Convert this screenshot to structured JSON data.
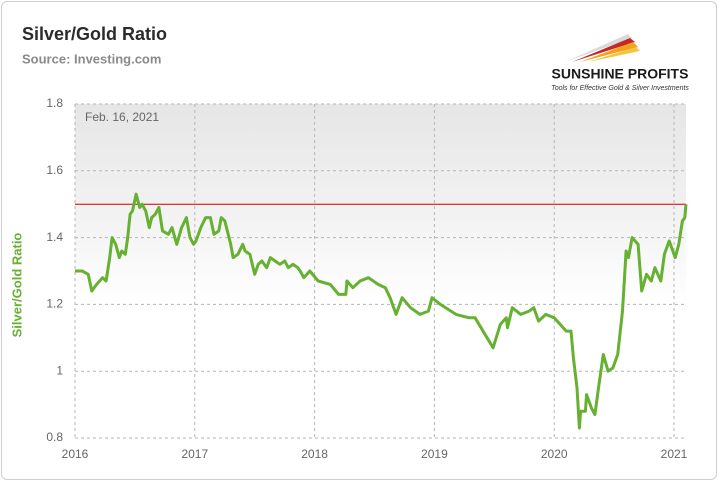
{
  "chart_data": {
    "type": "line",
    "title": "Silver/Gold Ratio",
    "subtitle": "Source: Investing.com",
    "y_label": "Silver/Gold Ratio",
    "annotation": "Feb. 16, 2021",
    "color": "#66b032",
    "grid": true,
    "xlim": [
      2016,
      2021.1
    ],
    "xticks": [
      2016,
      2017,
      2018,
      2019,
      2020,
      2021
    ],
    "ylim": [
      0.8,
      1.8
    ],
    "yticks": [
      0.8,
      1,
      1.2,
      1.4,
      1.6,
      1.8
    ],
    "reference_line": {
      "value": 1.5,
      "color": "#cc0000"
    },
    "x": [
      2016.0,
      2016.06,
      2016.11,
      2016.14,
      2016.18,
      2016.23,
      2016.26,
      2016.29,
      2016.31,
      2016.34,
      2016.37,
      2016.39,
      2016.42,
      2016.44,
      2016.46,
      2016.48,
      2016.51,
      2016.54,
      2016.56,
      2016.59,
      2016.62,
      2016.64,
      2016.67,
      2016.7,
      2016.73,
      2016.78,
      2016.81,
      2016.85,
      2016.89,
      2016.93,
      2016.96,
      2016.99,
      2017.01,
      2017.05,
      2017.09,
      2017.13,
      2017.16,
      2017.2,
      2017.22,
      2017.25,
      2017.3,
      2017.32,
      2017.36,
      2017.4,
      2017.42,
      2017.46,
      2017.5,
      2017.53,
      2017.56,
      2017.6,
      2017.63,
      2017.67,
      2017.71,
      2017.75,
      2017.78,
      2017.82,
      2017.86,
      2017.88,
      2017.91,
      2017.96,
      2018.03,
      2018.13,
      2018.2,
      2018.26,
      2018.27,
      2018.32,
      2018.38,
      2018.45,
      2018.53,
      2018.59,
      2018.63,
      2018.68,
      2018.73,
      2018.8,
      2018.88,
      2018.95,
      2018.98,
      2019.05,
      2019.18,
      2019.29,
      2019.34,
      2019.39,
      2019.44,
      2019.49,
      2019.55,
      2019.6,
      2019.61,
      2019.65,
      2019.72,
      2019.79,
      2019.83,
      2019.87,
      2019.93,
      2020.0,
      2020.1,
      2020.14,
      2020.16,
      2020.19,
      2020.21,
      2020.22,
      2020.26,
      2020.27,
      2020.31,
      2020.34,
      2020.37,
      2020.41,
      2020.45,
      2020.49,
      2020.53,
      2020.57,
      2020.6,
      2020.62,
      2020.65,
      2020.7,
      2020.73,
      2020.77,
      2020.81,
      2020.84,
      2020.89,
      2020.92,
      2020.96,
      2021.01,
      2021.04,
      2021.07,
      2021.09,
      2021.1
    ],
    "values": [
      1.3,
      1.3,
      1.29,
      1.24,
      1.26,
      1.28,
      1.27,
      1.34,
      1.4,
      1.38,
      1.34,
      1.36,
      1.35,
      1.4,
      1.47,
      1.48,
      1.53,
      1.49,
      1.5,
      1.48,
      1.43,
      1.46,
      1.47,
      1.49,
      1.42,
      1.41,
      1.43,
      1.38,
      1.43,
      1.46,
      1.4,
      1.38,
      1.39,
      1.43,
      1.46,
      1.46,
      1.41,
      1.42,
      1.46,
      1.45,
      1.38,
      1.34,
      1.35,
      1.38,
      1.36,
      1.35,
      1.29,
      1.32,
      1.33,
      1.31,
      1.34,
      1.33,
      1.32,
      1.33,
      1.31,
      1.32,
      1.31,
      1.3,
      1.28,
      1.3,
      1.27,
      1.26,
      1.23,
      1.23,
      1.27,
      1.25,
      1.27,
      1.28,
      1.26,
      1.25,
      1.22,
      1.17,
      1.22,
      1.19,
      1.17,
      1.18,
      1.22,
      1.2,
      1.17,
      1.16,
      1.16,
      1.13,
      1.1,
      1.07,
      1.14,
      1.16,
      1.13,
      1.19,
      1.17,
      1.18,
      1.19,
      1.15,
      1.17,
      1.16,
      1.12,
      1.12,
      1.04,
      0.95,
      0.83,
      0.88,
      0.88,
      0.93,
      0.89,
      0.87,
      0.95,
      1.05,
      1.0,
      1.01,
      1.05,
      1.18,
      1.36,
      1.34,
      1.4,
      1.38,
      1.24,
      1.29,
      1.27,
      1.31,
      1.27,
      1.35,
      1.39,
      1.34,
      1.38,
      1.45,
      1.46,
      1.5
    ]
  },
  "logo": {
    "name": "SUNSHINE PROFITS",
    "tagline": "Tools for Effective Gold & Silver Investments"
  }
}
